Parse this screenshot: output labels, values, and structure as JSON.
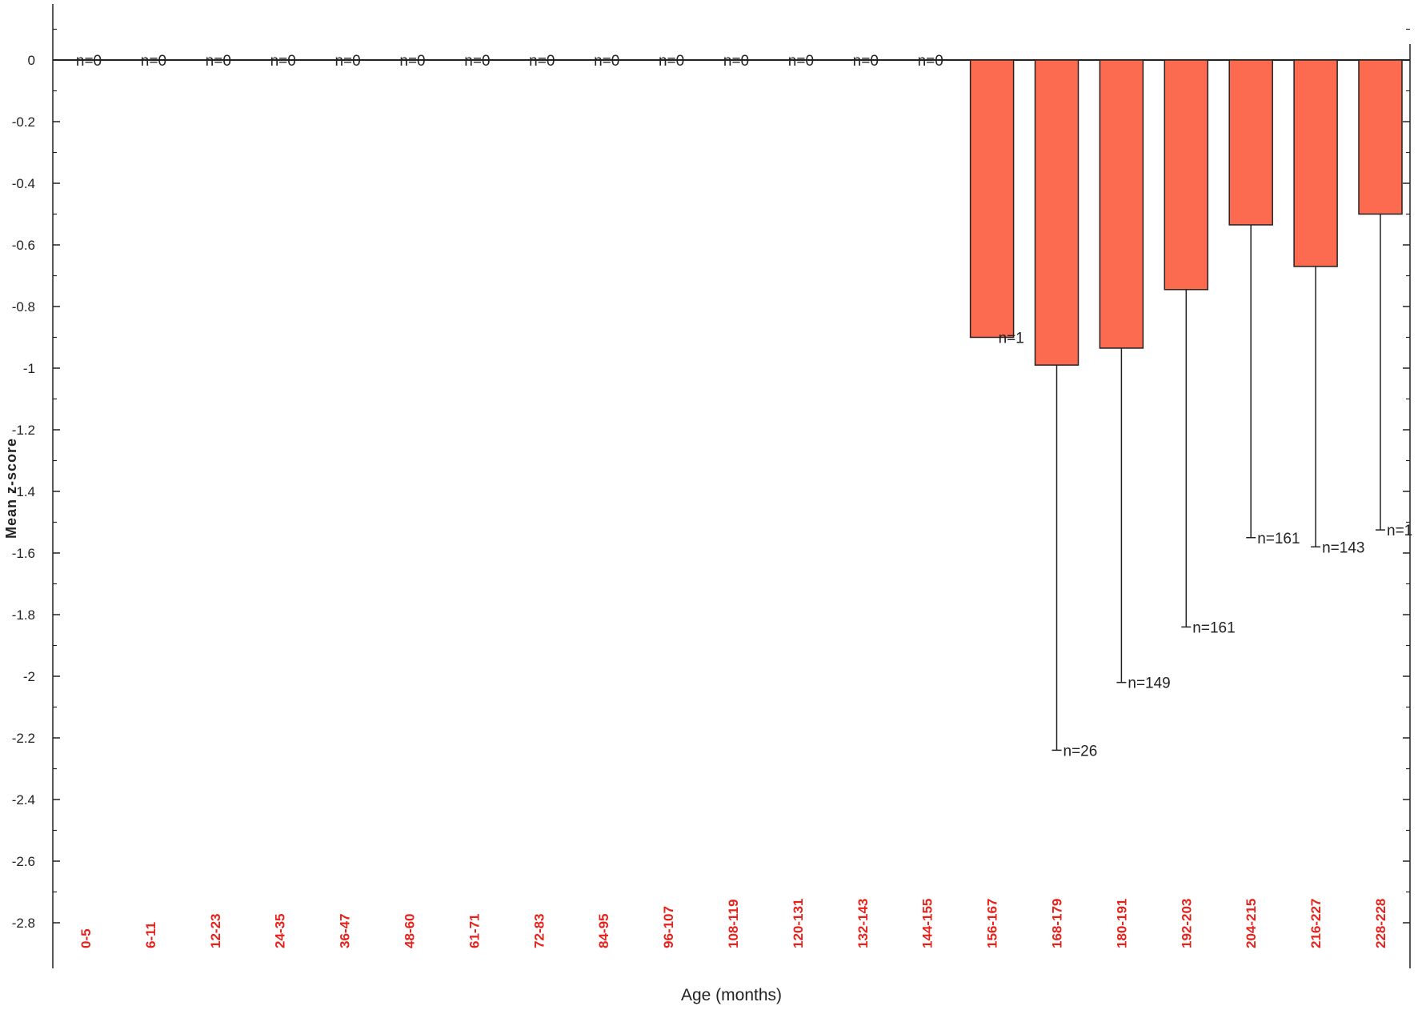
{
  "chart_data": {
    "type": "bar",
    "title": "",
    "xlabel": "Age (months)",
    "ylabel": "Mean z-score",
    "ylim": [
      -2.9,
      0.18
    ],
    "yticks": [
      "0",
      "-0.2",
      "-0.4",
      "-0.6",
      "-0.8",
      "-1",
      "-1.2",
      "-1.4",
      "-1.6",
      "-1.8",
      "-2",
      "-2.2",
      "-2.4",
      "-2.6",
      "-2.8"
    ],
    "ytick_values": [
      0,
      -0.2,
      -0.4,
      -0.6,
      -0.8,
      -1,
      -1.2,
      -1.4,
      -1.6,
      -1.8,
      -2,
      -2.2,
      -2.4,
      -2.6,
      -2.8
    ],
    "categories": [
      "0-5",
      "6-11",
      "12-23",
      "24-35",
      "36-47",
      "48-60",
      "61-71",
      "72-83",
      "84-95",
      "96-107",
      "108-119",
      "120-131",
      "132-143",
      "144-155",
      "156-167",
      "168-179",
      "180-191",
      "192-203",
      "204-215",
      "216-227",
      "228-228"
    ],
    "values": [
      0,
      0,
      0,
      0,
      0,
      0,
      0,
      0,
      0,
      0,
      0,
      0,
      0,
      0,
      -0.9,
      -0.99,
      -0.935,
      -0.745,
      -0.535,
      -0.67,
      -0.5
    ],
    "error_low": [
      null,
      null,
      null,
      null,
      null,
      null,
      null,
      null,
      null,
      null,
      null,
      null,
      null,
      null,
      null,
      -2.24,
      -2.02,
      -1.84,
      -1.55,
      -1.58,
      -1.525
    ],
    "n_labels": [
      "n=0",
      "n=0",
      "n=0",
      "n=0",
      "n=0",
      "n=0",
      "n=0",
      "n=0",
      "n=0",
      "n=0",
      "n=0",
      "n=0",
      "n=0",
      "n=0",
      "n=1",
      "n=26",
      "n=149",
      "n=161",
      "n=161",
      "n=143",
      "n=1"
    ],
    "bar_color": "#fc6a4f",
    "category_label_color": "#e8201a",
    "grid": false
  }
}
